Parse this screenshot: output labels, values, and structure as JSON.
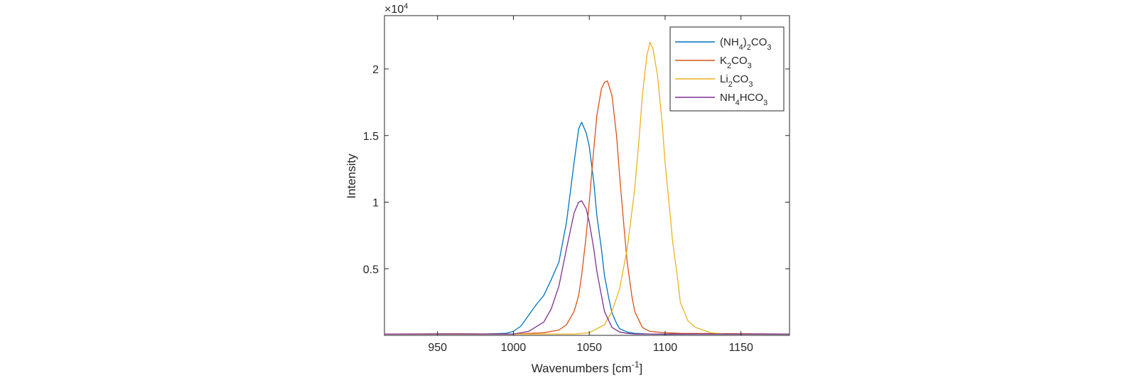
{
  "chart_data": {
    "type": "line",
    "xlabel": "Wavenumbers [cm^-1]",
    "ylabel": "Intensity",
    "xlim": [
      915,
      1182
    ],
    "ylim": [
      0,
      24000
    ],
    "x_ticks": [
      950,
      1000,
      1050,
      1100,
      1150
    ],
    "y_ticks": [
      5000,
      10000,
      15000,
      20000
    ],
    "y_tick_labels": [
      "0.5",
      "1",
      "1.5",
      "2"
    ],
    "y_exponent": "×10^4",
    "legend_position": "top-right",
    "grid": false,
    "series": [
      {
        "name": "(NH4)2CO3",
        "color": "#0072BD",
        "x": [
          915,
          940,
          960,
          980,
          995,
          1000,
          1005,
          1010,
          1015,
          1020,
          1025,
          1030,
          1035,
          1040,
          1043,
          1045,
          1048,
          1050,
          1053,
          1055,
          1058,
          1060,
          1063,
          1065,
          1068,
          1070,
          1075,
          1080,
          1090,
          1100,
          1120,
          1182
        ],
        "y": [
          100,
          100,
          120,
          100,
          150,
          300,
          700,
          1500,
          2300,
          3000,
          4200,
          5500,
          8500,
          13000,
          15500,
          16000,
          15200,
          14200,
          11500,
          9000,
          6500,
          4500,
          2700,
          1700,
          900,
          500,
          250,
          150,
          100,
          80,
          100,
          80
        ]
      },
      {
        "name": "K2CO3",
        "color": "#D95319",
        "x": [
          915,
          960,
          1000,
          1020,
          1030,
          1035,
          1040,
          1043,
          1045,
          1048,
          1050,
          1053,
          1055,
          1058,
          1060,
          1062,
          1065,
          1068,
          1070,
          1073,
          1075,
          1078,
          1080,
          1085,
          1090,
          1100,
          1110,
          1182
        ],
        "y": [
          100,
          120,
          100,
          200,
          400,
          800,
          1800,
          3000,
          4500,
          7500,
          10000,
          14000,
          16500,
          18500,
          19000,
          19100,
          18000,
          15000,
          12000,
          8000,
          5500,
          3000,
          1800,
          600,
          300,
          200,
          150,
          100
        ]
      },
      {
        "name": "Li2CO3",
        "color": "#EDB120",
        "x": [
          915,
          1000,
          1040,
          1050,
          1060,
          1065,
          1070,
          1075,
          1080,
          1083,
          1085,
          1088,
          1090,
          1092,
          1095,
          1098,
          1100,
          1103,
          1105,
          1108,
          1110,
          1115,
          1120,
          1130,
          1140,
          1182
        ],
        "y": [
          100,
          100,
          100,
          200,
          800,
          1800,
          3500,
          6500,
          11000,
          15000,
          18000,
          21000,
          22000,
          21500,
          19500,
          16000,
          13000,
          9500,
          7000,
          4500,
          2500,
          1100,
          600,
          200,
          100,
          100
        ]
      },
      {
        "name": "NH4HCO3",
        "color": "#7E2F8E",
        "x": [
          915,
          960,
          1000,
          1010,
          1020,
          1025,
          1030,
          1035,
          1040,
          1043,
          1045,
          1048,
          1050,
          1053,
          1055,
          1058,
          1060,
          1065,
          1070,
          1075,
          1080,
          1100,
          1182
        ],
        "y": [
          100,
          100,
          100,
          300,
          1000,
          2000,
          3700,
          6500,
          9200,
          10000,
          10100,
          9500,
          8500,
          6500,
          4800,
          3000,
          1800,
          600,
          250,
          150,
          100,
          100,
          100
        ]
      }
    ]
  }
}
